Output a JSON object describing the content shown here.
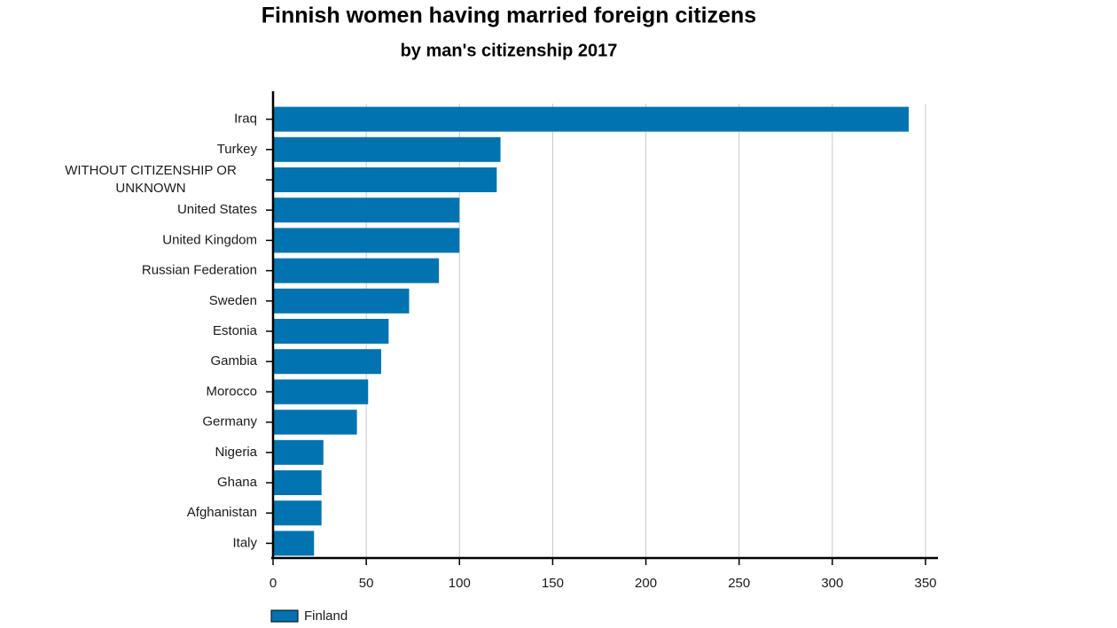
{
  "chart_data": {
    "type": "bar",
    "orientation": "horizontal",
    "title": "Finnish women having married foreign citizens",
    "subtitle": "by man's citizenship 2017",
    "categories": [
      "Iraq",
      "Turkey",
      "WITHOUT CITIZENSHIP OR UNKNOWN",
      "United States",
      "United Kingdom",
      "Russian Federation",
      "Sweden",
      "Estonia",
      "Gambia",
      "Morocco",
      "Germany",
      "Nigeria",
      "Ghana",
      "Afghanistan",
      "Italy"
    ],
    "series": [
      {
        "name": "Finland",
        "color": "#0073b0",
        "values": [
          341,
          122,
          120,
          100,
          100,
          89,
          73,
          62,
          58,
          51,
          45,
          27,
          26,
          26,
          22
        ]
      }
    ],
    "xlim": [
      0,
      350
    ],
    "xticks": [
      0,
      50,
      100,
      150,
      200,
      250,
      300,
      350
    ],
    "grid": true,
    "legend": "bottom-left"
  }
}
